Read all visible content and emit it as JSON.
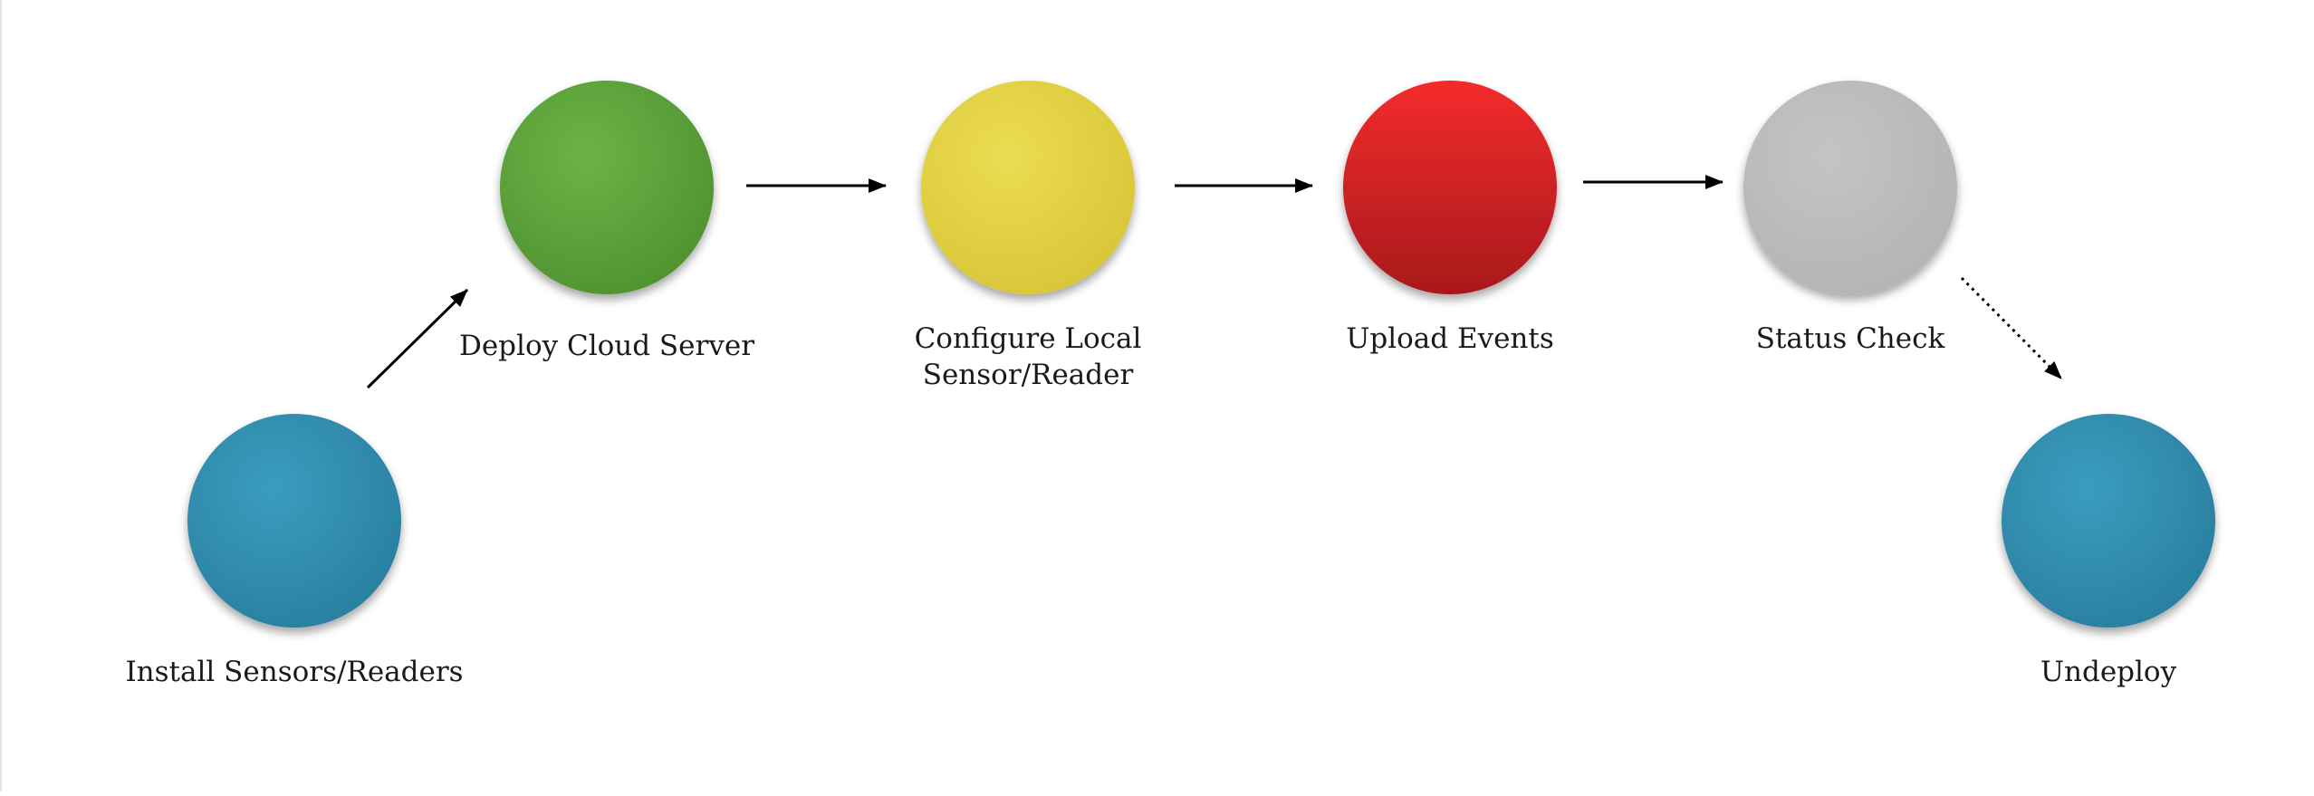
{
  "diagram": {
    "steps": [
      {
        "id": "install",
        "label_lines": [
          "Install Sensors/Readers"
        ],
        "color": "#2f8fb0"
      },
      {
        "id": "deploy",
        "label_lines": [
          "Deploy Cloud Server"
        ],
        "color": "#5ea63a"
      },
      {
        "id": "configure",
        "label_lines": [
          "Configure Local",
          "Sensor/Reader"
        ],
        "color": "#e6d440"
      },
      {
        "id": "upload",
        "label_lines": [
          "Upload Events"
        ],
        "color": "#e02424"
      },
      {
        "id": "status",
        "label_lines": [
          "Status Check"
        ],
        "color": "#bdbdbd"
      },
      {
        "id": "undeploy",
        "label_lines": [
          "Undeploy"
        ],
        "color": "#2f8fb0"
      }
    ],
    "connections": [
      {
        "from": "install",
        "to": "deploy",
        "style": "solid"
      },
      {
        "from": "deploy",
        "to": "configure",
        "style": "solid"
      },
      {
        "from": "configure",
        "to": "upload",
        "style": "solid"
      },
      {
        "from": "upload",
        "to": "status",
        "style": "solid"
      },
      {
        "from": "status",
        "to": "undeploy",
        "style": "dotted"
      }
    ]
  }
}
